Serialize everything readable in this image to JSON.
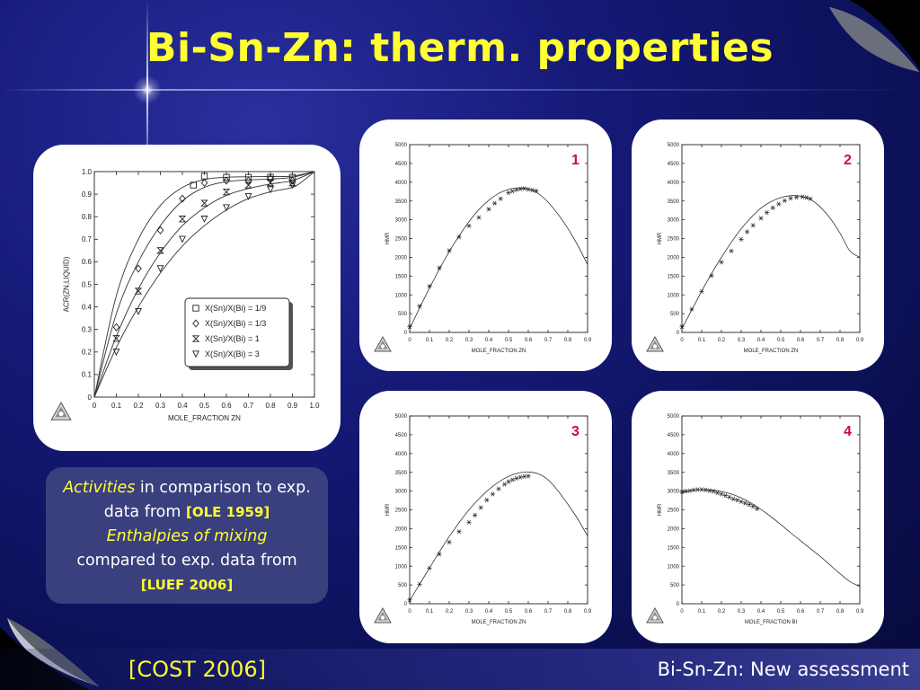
{
  "slide": {
    "title": "Bi-Sn-Zn: therm. properties",
    "footer_left": "[COST 2006]",
    "footer_right": "Bi-Sn-Zn: New assessment"
  },
  "caption": {
    "w1": "Activities",
    "w2": " in comparison to exp. data from ",
    "w3": "[OLE 1959]",
    "w4": "Enthalpies of mixing",
    "w5": "compared to exp. data from ",
    "w6": "[LUEF 2006]"
  },
  "colors": {
    "title": "#ffff33",
    "panel_label": "#cc0066",
    "background": "#151a78"
  },
  "chart_data": [
    {
      "type": "line",
      "id": "activity",
      "xlabel": "MOLE_FRACTION ZN",
      "ylabel": "ACR(ZN,LIQUID)",
      "xlim": [
        0,
        1.0
      ],
      "ylim": [
        0,
        1.0
      ],
      "xticks": [
        "0",
        "0.1",
        "0.2",
        "0.3",
        "0.4",
        "0.5",
        "0.6",
        "0.7",
        "0.8",
        "0.9",
        "1.0"
      ],
      "yticks": [
        "0",
        "0.1",
        "0.2",
        "0.3",
        "0.4",
        "0.5",
        "0.6",
        "0.7",
        "0.8",
        "0.9",
        "1.0"
      ],
      "legend": [
        "X(Sn)/X(Bi) = 1/9",
        "X(Sn)/X(Bi) = 1/3",
        "X(Sn)/X(Bi) = 1",
        "X(Sn)/X(Bi) = 3"
      ],
      "legend_position": "bottom-right",
      "series": [
        {
          "name": "X(Sn)/X(Bi) = 1/9",
          "marker": "square",
          "points": [
            [
              0.5,
              0.98
            ],
            [
              0.6,
              0.975
            ],
            [
              0.7,
              0.975
            ],
            [
              0.8,
              0.975
            ],
            [
              0.9,
              0.975
            ],
            [
              0.45,
              0.94
            ]
          ],
          "curve": [
            [
              0,
              0
            ],
            [
              0.1,
              0.45
            ],
            [
              0.2,
              0.7
            ],
            [
              0.3,
              0.85
            ],
            [
              0.4,
              0.93
            ],
            [
              0.5,
              0.965
            ],
            [
              0.6,
              0.975
            ],
            [
              0.7,
              0.977
            ],
            [
              0.8,
              0.978
            ],
            [
              0.9,
              0.98
            ],
            [
              1.0,
              1.0
            ]
          ]
        },
        {
          "name": "X(Sn)/X(Bi) = 1/3",
          "marker": "diamond",
          "points": [
            [
              0.1,
              0.31
            ],
            [
              0.2,
              0.57
            ],
            [
              0.3,
              0.74
            ],
            [
              0.4,
              0.88
            ],
            [
              0.5,
              0.95
            ],
            [
              0.6,
              0.96
            ],
            [
              0.7,
              0.96
            ],
            [
              0.8,
              0.97
            ],
            [
              0.9,
              0.96
            ]
          ],
          "curve": [
            [
              0,
              0
            ],
            [
              0.1,
              0.37
            ],
            [
              0.2,
              0.6
            ],
            [
              0.3,
              0.76
            ],
            [
              0.4,
              0.87
            ],
            [
              0.5,
              0.93
            ],
            [
              0.6,
              0.955
            ],
            [
              0.7,
              0.963
            ],
            [
              0.8,
              0.967
            ],
            [
              0.9,
              0.975
            ],
            [
              1.0,
              1.0
            ]
          ]
        },
        {
          "name": "X(Sn)/X(Bi) = 1",
          "marker": "hourglass",
          "points": [
            [
              0.1,
              0.26
            ],
            [
              0.2,
              0.47
            ],
            [
              0.3,
              0.65
            ],
            [
              0.4,
              0.79
            ],
            [
              0.5,
              0.86
            ],
            [
              0.6,
              0.91
            ],
            [
              0.7,
              0.94
            ],
            [
              0.8,
              0.95
            ],
            [
              0.9,
              0.95
            ]
          ],
          "curve": [
            [
              0,
              0
            ],
            [
              0.1,
              0.27
            ],
            [
              0.2,
              0.48
            ],
            [
              0.3,
              0.64
            ],
            [
              0.4,
              0.76
            ],
            [
              0.5,
              0.84
            ],
            [
              0.6,
              0.895
            ],
            [
              0.7,
              0.925
            ],
            [
              0.8,
              0.945
            ],
            [
              0.9,
              0.96
            ],
            [
              1.0,
              1.0
            ]
          ]
        },
        {
          "name": "X(Sn)/X(Bi) = 3",
          "marker": "triangle-down",
          "points": [
            [
              0.1,
              0.2
            ],
            [
              0.2,
              0.38
            ],
            [
              0.3,
              0.57
            ],
            [
              0.4,
              0.7
            ],
            [
              0.5,
              0.79
            ],
            [
              0.6,
              0.84
            ],
            [
              0.7,
              0.89
            ],
            [
              0.8,
              0.92
            ],
            [
              0.9,
              0.94
            ]
          ],
          "curve": [
            [
              0,
              0
            ],
            [
              0.1,
              0.22
            ],
            [
              0.2,
              0.4
            ],
            [
              0.3,
              0.55
            ],
            [
              0.4,
              0.67
            ],
            [
              0.5,
              0.76
            ],
            [
              0.6,
              0.83
            ],
            [
              0.7,
              0.88
            ],
            [
              0.8,
              0.91
            ],
            [
              0.9,
              0.93
            ],
            [
              0.95,
              0.96
            ],
            [
              1.0,
              1.0
            ]
          ]
        }
      ]
    },
    {
      "type": "line",
      "id": "hmr1",
      "label": "1",
      "xlabel": "MOLE_FRACTION ZN",
      "ylabel": "HMR",
      "xlim": [
        0,
        0.9
      ],
      "ylim": [
        0,
        5000
      ],
      "xticks": [
        "0",
        "0.1",
        "0.2",
        "0.3",
        "0.4",
        "0.5",
        "0.6",
        "0.7",
        "0.8",
        "0.9"
      ],
      "yticks": [
        "0",
        "500",
        "1000",
        "1500",
        "2000",
        "2500",
        "3000",
        "3500",
        "4000",
        "4500",
        "5000"
      ],
      "curve": [
        [
          0,
          100
        ],
        [
          0.05,
          650
        ],
        [
          0.1,
          1180
        ],
        [
          0.15,
          1680
        ],
        [
          0.2,
          2150
        ],
        [
          0.25,
          2570
        ],
        [
          0.3,
          2950
        ],
        [
          0.35,
          3270
        ],
        [
          0.4,
          3520
        ],
        [
          0.45,
          3700
        ],
        [
          0.5,
          3810
        ],
        [
          0.55,
          3850
        ],
        [
          0.6,
          3820
        ],
        [
          0.65,
          3700
        ],
        [
          0.7,
          3470
        ],
        [
          0.75,
          3150
        ],
        [
          0.8,
          2770
        ],
        [
          0.85,
          2320
        ],
        [
          0.9,
          1800
        ]
      ],
      "points": [
        [
          0,
          150
        ],
        [
          0.05,
          700
        ],
        [
          0.1,
          1230
        ],
        [
          0.15,
          1720
        ],
        [
          0.2,
          2180
        ],
        [
          0.25,
          2540
        ],
        [
          0.3,
          2840
        ],
        [
          0.35,
          3060
        ],
        [
          0.4,
          3280
        ],
        [
          0.43,
          3440
        ],
        [
          0.46,
          3560
        ],
        [
          0.5,
          3720
        ],
        [
          0.52,
          3760
        ],
        [
          0.54,
          3800
        ],
        [
          0.56,
          3820
        ],
        [
          0.58,
          3830
        ],
        [
          0.6,
          3810
        ],
        [
          0.62,
          3790
        ],
        [
          0.64,
          3770
        ]
      ]
    },
    {
      "type": "line",
      "id": "hmr2",
      "label": "2",
      "xlabel": "MOLE_FRACTION ZN",
      "ylabel": "HMR",
      "xlim": [
        0,
        0.9
      ],
      "ylim": [
        0,
        5000
      ],
      "xticks": [
        "0",
        "0.1",
        "0.2",
        "0.3",
        "0.4",
        "0.5",
        "0.6",
        "0.7",
        "0.8",
        "0.9"
      ],
      "yticks": [
        "0",
        "500",
        "1000",
        "1500",
        "2000",
        "2500",
        "3000",
        "3500",
        "4000",
        "4500",
        "5000"
      ],
      "curve": [
        [
          0,
          100
        ],
        [
          0.05,
          600
        ],
        [
          0.1,
          1100
        ],
        [
          0.15,
          1570
        ],
        [
          0.2,
          2000
        ],
        [
          0.25,
          2400
        ],
        [
          0.3,
          2760
        ],
        [
          0.35,
          3060
        ],
        [
          0.4,
          3310
        ],
        [
          0.45,
          3480
        ],
        [
          0.5,
          3590
        ],
        [
          0.55,
          3640
        ],
        [
          0.6,
          3630
        ],
        [
          0.65,
          3540
        ],
        [
          0.7,
          3340
        ],
        [
          0.75,
          3040
        ],
        [
          0.8,
          2640
        ],
        [
          0.85,
          2170
        ],
        [
          0.9,
          2000
        ]
      ],
      "points": [
        [
          0,
          150
        ],
        [
          0.05,
          620
        ],
        [
          0.1,
          1090
        ],
        [
          0.15,
          1510
        ],
        [
          0.2,
          1870
        ],
        [
          0.25,
          2170
        ],
        [
          0.3,
          2480
        ],
        [
          0.33,
          2680
        ],
        [
          0.36,
          2850
        ],
        [
          0.4,
          3040
        ],
        [
          0.43,
          3190
        ],
        [
          0.46,
          3320
        ],
        [
          0.49,
          3420
        ],
        [
          0.52,
          3510
        ],
        [
          0.55,
          3570
        ],
        [
          0.58,
          3600
        ],
        [
          0.61,
          3610
        ],
        [
          0.63,
          3590
        ],
        [
          0.65,
          3560
        ]
      ]
    },
    {
      "type": "line",
      "id": "hmr3",
      "label": "3",
      "xlabel": "MOLE_FRACTION ZN",
      "ylabel": "HMR",
      "xlim": [
        0,
        0.9
      ],
      "ylim": [
        0,
        5000
      ],
      "xticks": [
        "0",
        "0.1",
        "0.2",
        "0.3",
        "0.4",
        "0.5",
        "0.6",
        "0.7",
        "0.8",
        "0.9"
      ],
      "yticks": [
        "0",
        "500",
        "1000",
        "1500",
        "2000",
        "2500",
        "3000",
        "3500",
        "4000",
        "4500",
        "5000"
      ],
      "curve": [
        [
          0,
          80
        ],
        [
          0.05,
          520
        ],
        [
          0.1,
          950
        ],
        [
          0.15,
          1380
        ],
        [
          0.2,
          1790
        ],
        [
          0.25,
          2160
        ],
        [
          0.3,
          2500
        ],
        [
          0.35,
          2790
        ],
        [
          0.4,
          3040
        ],
        [
          0.45,
          3240
        ],
        [
          0.5,
          3390
        ],
        [
          0.55,
          3480
        ],
        [
          0.6,
          3510
        ],
        [
          0.65,
          3460
        ],
        [
          0.7,
          3300
        ],
        [
          0.75,
          3010
        ],
        [
          0.8,
          2650
        ],
        [
          0.85,
          2260
        ],
        [
          0.9,
          1800
        ]
      ],
      "points": [
        [
          0,
          100
        ],
        [
          0.05,
          520
        ],
        [
          0.1,
          950
        ],
        [
          0.15,
          1320
        ],
        [
          0.2,
          1640
        ],
        [
          0.25,
          1920
        ],
        [
          0.3,
          2170
        ],
        [
          0.33,
          2360
        ],
        [
          0.36,
          2560
        ],
        [
          0.39,
          2760
        ],
        [
          0.42,
          2920
        ],
        [
          0.45,
          3060
        ],
        [
          0.48,
          3180
        ],
        [
          0.5,
          3250
        ],
        [
          0.52,
          3300
        ],
        [
          0.54,
          3340
        ],
        [
          0.56,
          3370
        ],
        [
          0.58,
          3390
        ],
        [
          0.6,
          3400
        ]
      ]
    },
    {
      "type": "line",
      "id": "hmr4",
      "label": "4",
      "xlabel": "MOLE_FRACTION BI",
      "ylabel": "HMR",
      "xlim": [
        0,
        0.9
      ],
      "ylim": [
        0,
        5000
      ],
      "xticks": [
        "0",
        "0.1",
        "0.2",
        "0.3",
        "0.4",
        "0.5",
        "0.6",
        "0.7",
        "0.8",
        "0.9"
      ],
      "yticks": [
        "0",
        "500",
        "1000",
        "1500",
        "2000",
        "2500",
        "3000",
        "3500",
        "4000",
        "4500",
        "5000"
      ],
      "curve": [
        [
          0,
          2950
        ],
        [
          0.05,
          3020
        ],
        [
          0.1,
          3040
        ],
        [
          0.15,
          3030
        ],
        [
          0.2,
          2990
        ],
        [
          0.25,
          2920
        ],
        [
          0.3,
          2820
        ],
        [
          0.35,
          2680
        ],
        [
          0.4,
          2510
        ],
        [
          0.45,
          2320
        ],
        [
          0.5,
          2110
        ],
        [
          0.55,
          1890
        ],
        [
          0.6,
          1680
        ],
        [
          0.65,
          1470
        ],
        [
          0.7,
          1260
        ],
        [
          0.75,
          1030
        ],
        [
          0.8,
          800
        ],
        [
          0.85,
          590
        ],
        [
          0.9,
          460
        ]
      ],
      "points": [
        [
          0,
          2980
        ],
        [
          0.02,
          3000
        ],
        [
          0.04,
          3010
        ],
        [
          0.06,
          3030
        ],
        [
          0.08,
          3040
        ],
        [
          0.1,
          3040
        ],
        [
          0.12,
          3030
        ],
        [
          0.14,
          3010
        ],
        [
          0.16,
          2990
        ],
        [
          0.18,
          2950
        ],
        [
          0.2,
          2920
        ],
        [
          0.22,
          2880
        ],
        [
          0.24,
          2840
        ],
        [
          0.26,
          2790
        ],
        [
          0.28,
          2760
        ],
        [
          0.3,
          2720
        ],
        [
          0.32,
          2680
        ],
        [
          0.34,
          2640
        ],
        [
          0.36,
          2590
        ],
        [
          0.38,
          2530
        ]
      ]
    }
  ]
}
